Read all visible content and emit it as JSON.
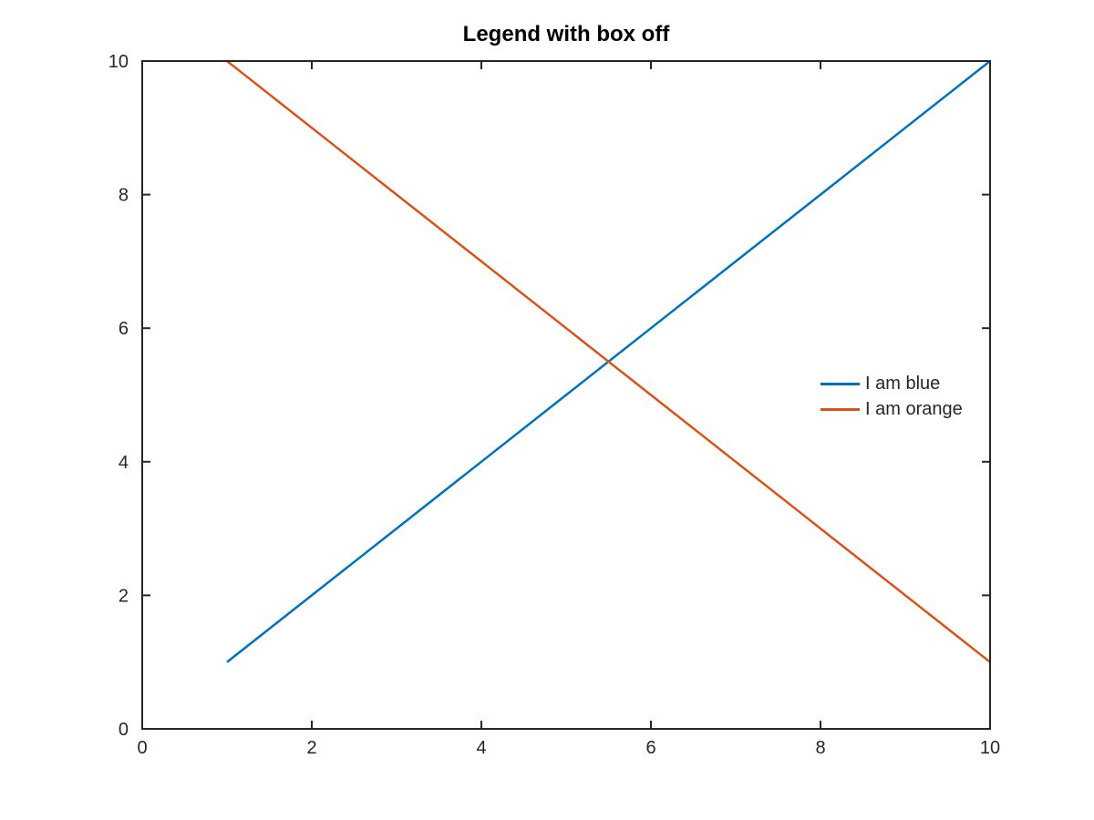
{
  "figure": {
    "background": "#ffffff"
  },
  "chart_data": {
    "type": "line",
    "title": "Legend with box off",
    "xlabel": "",
    "ylabel": "",
    "xlim": [
      0,
      10
    ],
    "ylim": [
      0,
      10
    ],
    "xticks": [
      0,
      2,
      4,
      6,
      8,
      10
    ],
    "yticks": [
      0,
      2,
      4,
      6,
      8,
      10
    ],
    "grid": false,
    "box": true,
    "axis_color": "#262626",
    "tick_label_color": "#262626",
    "title_color": "#000000",
    "legend": {
      "visible": true,
      "box": "off",
      "position": "east",
      "entries": [
        "I am blue",
        "I am orange"
      ]
    },
    "series": [
      {
        "name": "I am blue",
        "color": "#0072BD",
        "x": [
          1,
          2,
          3,
          4,
          5,
          6,
          7,
          8,
          9,
          10
        ],
        "y": [
          1,
          2,
          3,
          4,
          5,
          6,
          7,
          8,
          9,
          10
        ]
      },
      {
        "name": "I am orange",
        "color": "#D95319",
        "x": [
          1,
          2,
          3,
          4,
          5,
          6,
          7,
          8,
          9,
          10
        ],
        "y": [
          10,
          9,
          8,
          7,
          6,
          5,
          4,
          3,
          2,
          1
        ]
      }
    ]
  }
}
